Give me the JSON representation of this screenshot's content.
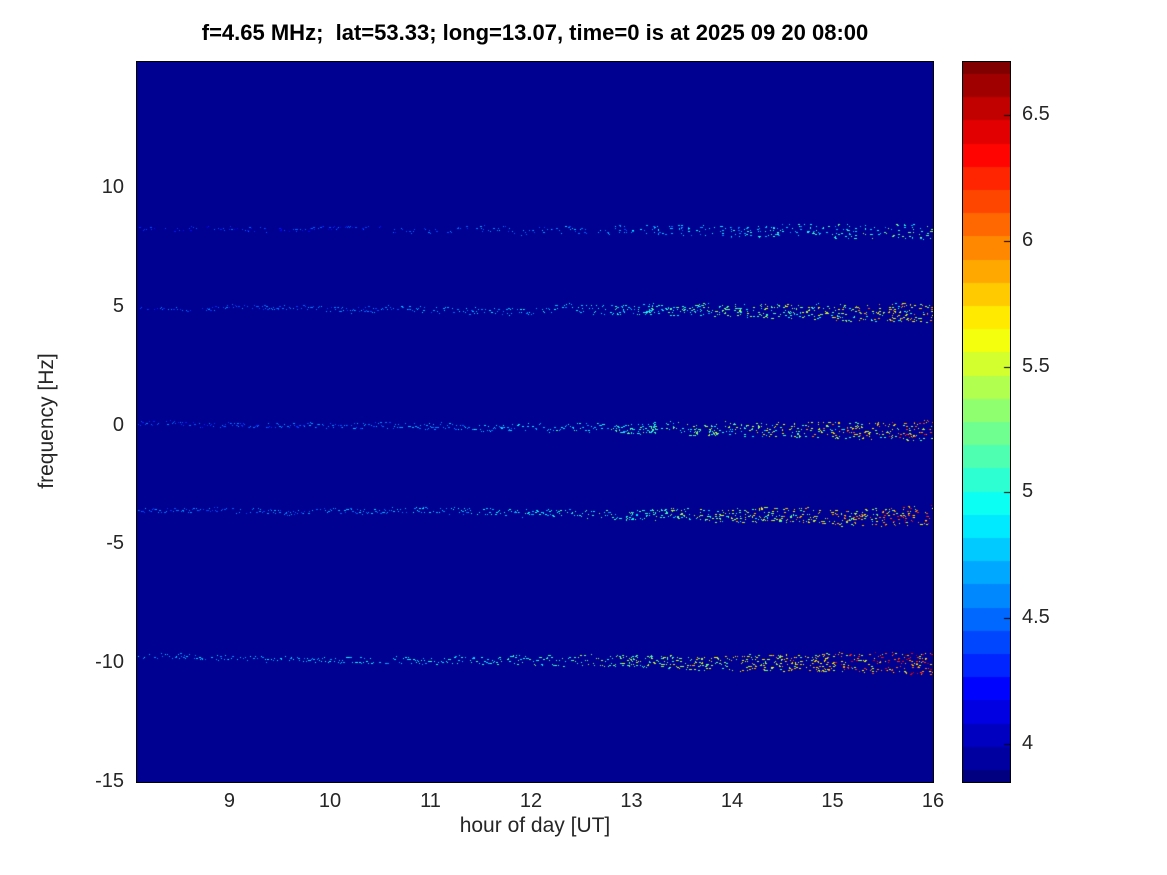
{
  "chart_data": {
    "type": "heatmap",
    "title": "f=4.65 MHz;  lat=53.33; long=13.07, time=0 is at 2025 09 20 08:00",
    "xlabel": "hour of day [UT]",
    "ylabel": "frequency [Hz]",
    "xlim": [
      8.08,
      16
    ],
    "ylim": [
      -15,
      15.3
    ],
    "xticks": [
      9,
      10,
      11,
      12,
      13,
      14,
      15,
      16
    ],
    "yticks": [
      -15,
      -10,
      -5,
      0,
      5,
      10
    ],
    "grid": false,
    "legend": false,
    "background_value": 3.9,
    "colorbar": {
      "colormap": "jet",
      "position": "right",
      "range": [
        3.85,
        6.71
      ],
      "ticks": [
        4,
        4.5,
        5,
        5.5,
        6,
        6.5
      ],
      "levels": 32
    },
    "description": "Doppler spectrogram: five nearly horizontal spectral traces on a uniform dark-blue background; traces brighten (cyan/green/yellow/orange speckles) and broaden toward 14-16 UT.",
    "traces": [
      {
        "name": "trace-plus8hz",
        "frequency_hz_start": 8.3,
        "frequency_hz_end": 8.2,
        "intensity_start": 4.35,
        "intensity_end": 5.3,
        "density": 0.5,
        "spread_hz": 0.25
      },
      {
        "name": "trace-plus5hz",
        "frequency_hz_start": 5.0,
        "frequency_hz_end": 4.8,
        "intensity_start": 4.45,
        "intensity_end": 5.9,
        "density": 0.8,
        "spread_hz": 0.3
      },
      {
        "name": "trace-0hz",
        "frequency_hz_start": 0.05,
        "frequency_hz_end": -0.2,
        "intensity_start": 4.45,
        "intensity_end": 6.1,
        "density": 0.85,
        "spread_hz": 0.3
      },
      {
        "name": "trace-minus4hz",
        "frequency_hz_start": -3.55,
        "frequency_hz_end": -3.8,
        "intensity_start": 4.5,
        "intensity_end": 6.2,
        "density": 0.9,
        "spread_hz": 0.3
      },
      {
        "name": "trace-minus10hz",
        "frequency_hz_start": -9.7,
        "frequency_hz_end": -10.05,
        "intensity_start": 4.7,
        "intensity_end": 6.35,
        "density": 0.95,
        "spread_hz": 0.35
      }
    ]
  }
}
